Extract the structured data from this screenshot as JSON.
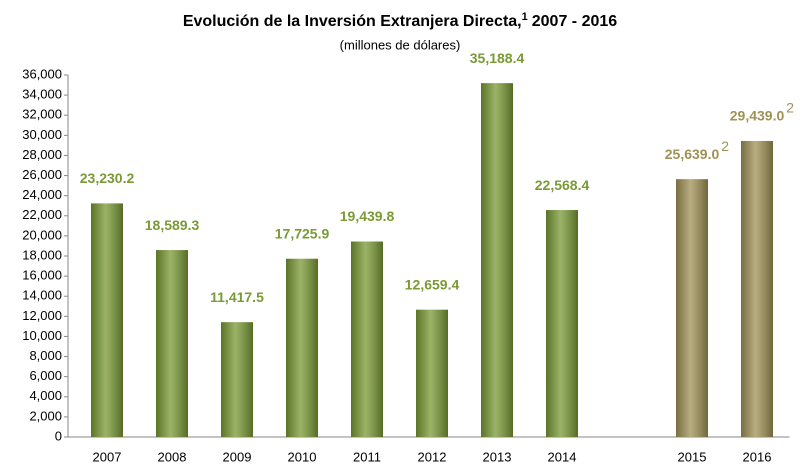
{
  "chart_data": {
    "type": "bar",
    "title": "Evolución de la Inversión Extranjera Directa,",
    "title_footnote": "1",
    "title_years": "2007 - 2016",
    "subtitle": "(millones de dólares)",
    "categories": [
      "2007",
      "2008",
      "2009",
      "2010",
      "2011",
      "2012",
      "2013",
      "2014",
      null,
      "2015",
      "2016"
    ],
    "values": [
      23230.2,
      18589.3,
      11417.5,
      17725.9,
      19439.8,
      12659.4,
      35188.4,
      22568.4,
      null,
      25639.0,
      29439.0
    ],
    "value_labels": [
      "23,230.2",
      "18,589.3",
      "11,417.5",
      "17,725.9",
      "19,439.8",
      "12,659.4",
      "35,188.4",
      "22,568.4",
      null,
      "25,639.0",
      "29,439.0"
    ],
    "value_label_notes": [
      null,
      null,
      null,
      null,
      null,
      null,
      null,
      null,
      null,
      "2",
      "2"
    ],
    "colors": [
      "#7a9a35",
      "#7a9a35",
      "#7a9a35",
      "#7a9a35",
      "#7a9a35",
      "#7a9a35",
      "#7a9a35",
      "#7a9a35",
      null,
      "#a09256",
      "#a09256"
    ],
    "ylim": [
      0,
      36000
    ],
    "yticks": [
      0,
      {
        "value": 2000,
        "label": "2,000"
      },
      {
        "value": 4000,
        "label": "4,000"
      },
      {
        "value": 6000,
        "label": "6,000"
      },
      {
        "value": 8000,
        "label": "8,000"
      },
      {
        "value": 10000,
        "label": "10,000"
      },
      {
        "value": 12000,
        "label": "12,000"
      },
      {
        "value": 14000,
        "label": "14,000"
      },
      {
        "value": 16000,
        "label": "16,000"
      },
      {
        "value": 18000,
        "label": "18,000"
      },
      {
        "value": 20000,
        "label": "20,000"
      },
      {
        "value": 22000,
        "label": "22,000"
      },
      {
        "value": 24000,
        "label": "24,000"
      },
      {
        "value": 26000,
        "label": "26,000"
      },
      {
        "value": 28000,
        "label": "28,000"
      },
      {
        "value": 30000,
        "label": "30,000"
      },
      {
        "value": 32000,
        "label": "32,000"
      },
      {
        "value": 34000,
        "label": "34,000"
      },
      {
        "value": 36000,
        "label": "36,000"
      }
    ],
    "grid": false
  }
}
